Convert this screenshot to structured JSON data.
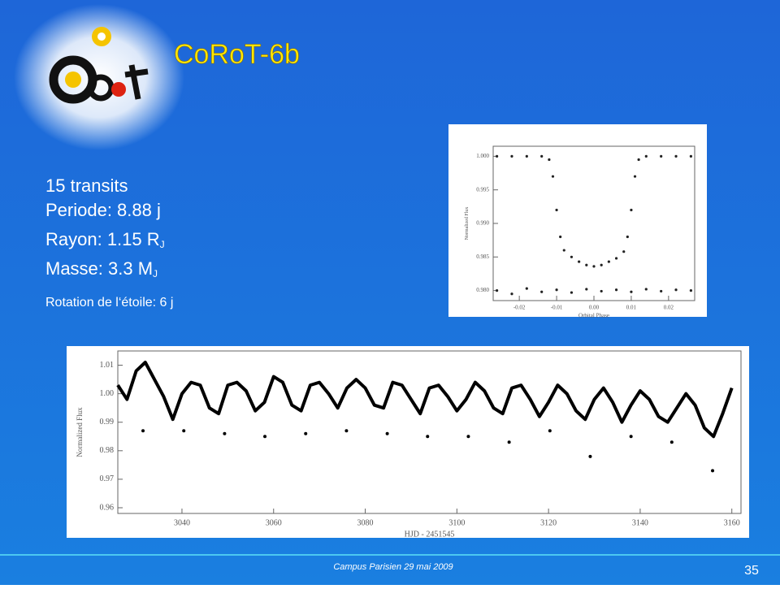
{
  "title": "CoRoT-6b",
  "facts": [
    {
      "text": "15 transits"
    },
    {
      "text": "Periode: 8.88 j"
    },
    {
      "text": "Rayon:  1.15 R",
      "sub": "J"
    },
    {
      "text": "Masse: 3.3 M",
      "sub": "J"
    }
  ],
  "note": "Rotation de l‘étoile: 6 j",
  "footer": "Campus Parisien 29 mai 2009",
  "page_number": 35,
  "chart_data": [
    {
      "type": "scatter",
      "xlabel": "Orbital Phase",
      "ylabel": "Normalized Flux",
      "xlim": [
        -0.027,
        0.027
      ],
      "xticks": [
        -0.02,
        -0.01,
        {
          "value": 0,
          "label": "0.00"
        },
        0.01,
        0.02
      ],
      "ylim": [
        0.9785,
        1.0015
      ],
      "yticks": [
        {
          "value": 1,
          "label": "1.000"
        },
        0.995,
        {
          "value": 0.99,
          "label": "0.990"
        },
        0.985,
        {
          "value": 0.98,
          "label": "0.980"
        }
      ],
      "series": [
        {
          "color": "#222222",
          "x": [
            -0.026,
            -0.022,
            -0.018,
            -0.014,
            -0.012,
            -0.011,
            -0.01,
            -0.009,
            -0.008,
            -0.006,
            -0.004,
            -0.002,
            0,
            0.002,
            0.004,
            0.006,
            0.008,
            0.009,
            0.01,
            0.011,
            0.012,
            0.014,
            0.018,
            0.022,
            0.026
          ],
          "values": [
            1.0,
            1.0,
            1.0,
            1.0,
            0.9995,
            0.997,
            0.992,
            0.988,
            0.986,
            0.985,
            0.9843,
            0.9838,
            0.9836,
            0.9838,
            0.9843,
            0.9848,
            0.9858,
            0.988,
            0.992,
            0.997,
            0.9995,
            1.0,
            1.0,
            1.0,
            1.0
          ]
        },
        {
          "color": "#222222",
          "x": [
            -0.026,
            -0.022,
            -0.018,
            -0.014,
            -0.01,
            -0.006,
            -0.002,
            0.002,
            0.006,
            0.01,
            0.014,
            0.018,
            0.022,
            0.026
          ],
          "values": [
            0.98,
            0.9795,
            0.9803,
            0.9798,
            0.9801,
            0.9797,
            0.9802,
            0.9799,
            0.9801,
            0.9798,
            0.9802,
            0.9799,
            0.9801,
            0.98
          ]
        }
      ]
    },
    {
      "type": "line",
      "xlabel": "HJD - 2451545",
      "ylabel": "Normalized Flux",
      "xlim": [
        3026,
        3162
      ],
      "xticks": [
        3040,
        3060,
        3080,
        3100,
        3120,
        3140,
        3160
      ],
      "ylim": [
        0.958,
        1.015
      ],
      "yticks": [
        0.96,
        0.97,
        0.98,
        0.99,
        {
          "value": 1,
          "label": "1.00"
        },
        1.01
      ],
      "series": [
        {
          "color": "#000000",
          "x": [
            3026,
            3028,
            3030,
            3032,
            3034,
            3036,
            3038,
            3040,
            3042,
            3044,
            3046,
            3048,
            3050,
            3052,
            3054,
            3056,
            3058,
            3060,
            3062,
            3064,
            3066,
            3068,
            3070,
            3072,
            3074,
            3076,
            3078,
            3080,
            3082,
            3084,
            3086,
            3088,
            3090,
            3092,
            3094,
            3096,
            3098,
            3100,
            3102,
            3104,
            3106,
            3108,
            3110,
            3112,
            3114,
            3116,
            3118,
            3120,
            3122,
            3124,
            3126,
            3128,
            3130,
            3132,
            3134,
            3136,
            3138,
            3140,
            3142,
            3144,
            3146,
            3148,
            3150,
            3152,
            3154,
            3156,
            3158,
            3160
          ],
          "values": [
            1.003,
            0.998,
            1.008,
            1.011,
            1.005,
            0.999,
            0.991,
            1.0,
            1.004,
            1.003,
            0.995,
            0.993,
            1.003,
            1.004,
            1.001,
            0.994,
            0.997,
            1.006,
            1.004,
            0.996,
            0.994,
            1.003,
            1.004,
            1.0,
            0.995,
            1.002,
            1.005,
            1.002,
            0.996,
            0.995,
            1.004,
            1.003,
            0.998,
            0.993,
            1.002,
            1.003,
            0.999,
            0.994,
            0.998,
            1.004,
            1.001,
            0.995,
            0.993,
            1.002,
            1.003,
            0.998,
            0.992,
            0.997,
            1.003,
            1.0,
            0.994,
            0.991,
            0.998,
            1.002,
            0.997,
            0.99,
            0.996,
            1.001,
            0.998,
            0.992,
            0.99,
            0.995,
            1.0,
            0.996,
            0.988,
            0.985,
            0.993,
            1.002
          ]
        },
        {
          "color": "#000000",
          "marker": "dot",
          "x": [
            3031.5,
            3040.4,
            3049.3,
            3058.1,
            3067.0,
            3075.9,
            3084.8,
            3093.6,
            3102.5,
            3111.4,
            3120.3,
            3129.1,
            3138.0,
            3146.9,
            3155.8
          ],
          "values": [
            0.987,
            0.987,
            0.986,
            0.985,
            0.986,
            0.987,
            0.986,
            0.985,
            0.985,
            0.983,
            0.987,
            0.978,
            0.985,
            0.983,
            0.973
          ]
        }
      ]
    }
  ]
}
